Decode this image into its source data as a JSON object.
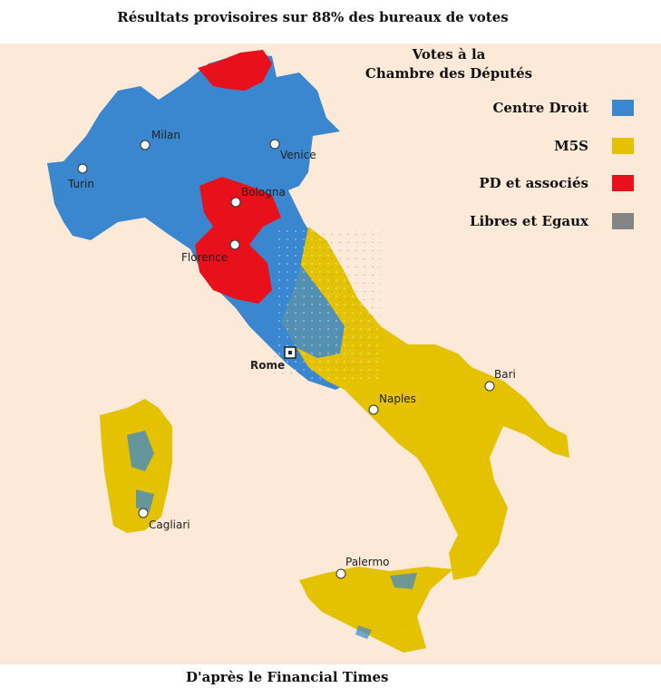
{
  "title": "Résultats provisoires sur 88% des bureaux de votes",
  "legend": {
    "title_line1": "Votes à la",
    "title_line2": "Chambre des Députés",
    "items": [
      {
        "label": "Centre Droit",
        "color": "#3a87d0"
      },
      {
        "label": "M5S",
        "color": "#e5c200"
      },
      {
        "label": "PD et associés",
        "color": "#e8101a"
      },
      {
        "label": "Libres et Egaux",
        "color": "#848484"
      }
    ]
  },
  "cities": [
    {
      "name": "Milan"
    },
    {
      "name": "Venice"
    },
    {
      "name": "Turin"
    },
    {
      "name": "Bologna"
    },
    {
      "name": "Florence"
    },
    {
      "name": "Rome"
    },
    {
      "name": "Naples"
    },
    {
      "name": "Bari"
    },
    {
      "name": "Cagliari"
    },
    {
      "name": "Palermo"
    }
  ],
  "source": "D'après le Financial Times"
}
